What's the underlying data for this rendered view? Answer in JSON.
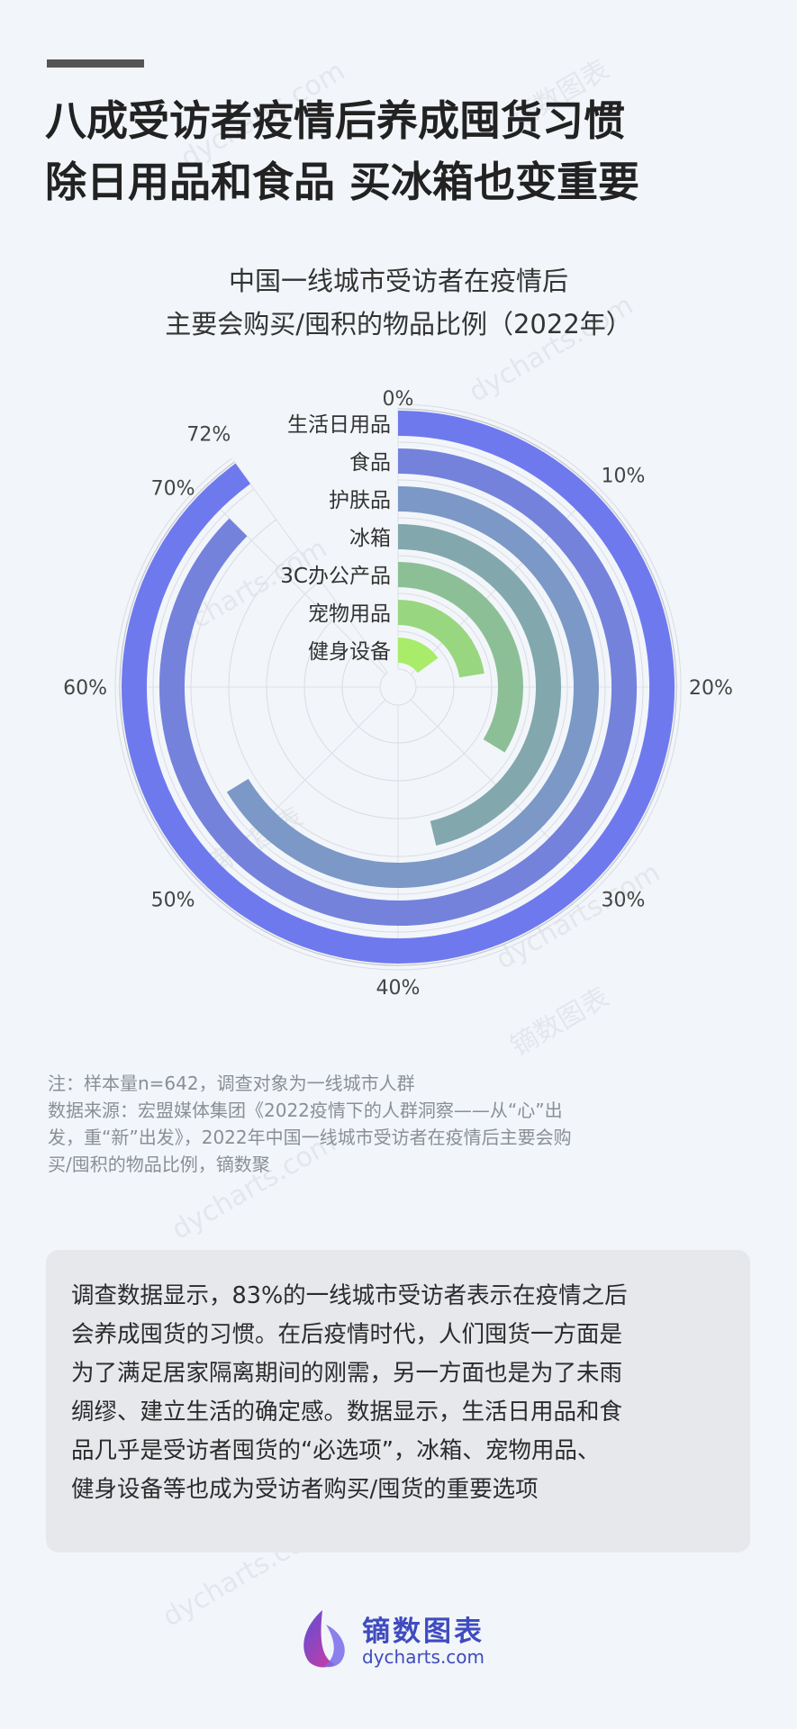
{
  "headline": {
    "line1": "八成受访者疫情后养成囤货习惯",
    "line2": "除日用品和食品  买冰箱也变重要"
  },
  "chart_data": {
    "type": "radial-bar",
    "title_line1": "中国一线城市受访者在疫情后",
    "title_line2": "主要会购买/囤积的物品比例（2022年）",
    "categories": [
      "生活日用品",
      "食品",
      "护肤品",
      "冰箱",
      "3C办公产品",
      "宠物用品",
      "健身设备"
    ],
    "values": [
      72,
      70,
      53,
      37,
      27,
      18,
      12
    ],
    "axis_range": [
      0,
      80
    ],
    "tick_values": [
      0,
      10,
      20,
      30,
      40,
      50,
      60,
      70,
      72
    ],
    "tick_labels": [
      "0%",
      "10%",
      "20%",
      "30%",
      "40%",
      "50%",
      "60%",
      "70%",
      "72%"
    ],
    "colors": [
      "#6f79ee",
      "#7482dc",
      "#7b98c6",
      "#82a8ae",
      "#8dbf97",
      "#99d680",
      "#a8ec6a"
    ],
    "grid": true
  },
  "notes": {
    "line1": "注：样本量n=642，调查对象为一线城市人群",
    "line2": "数据来源：宏盟媒体集团《2022疫情下的人群洞察——从“心”出",
    "line3": "发，重“新”出发》，2022年中国一线城市受访者在疫情后主要会购",
    "line4": "买/囤积的物品比例，镝数聚"
  },
  "summary": {
    "line1": "调查数据显示，83%的一线城市受访者表示在疫情之后",
    "line2": "会养成囤货的习惯。在后疫情时代，人们囤货一方面是",
    "line3": "为了满足居家隔离期间的刚需，另一方面也是为了未雨",
    "line4": "绸缪、建立生活的确定感。数据显示，生活日用品和食",
    "line5": "品几乎是受访者囤货的“必选项”，冰箱、宠物用品、",
    "line6": "健身设备等也成为受访者购买/囤货的重要选项"
  },
  "brand": {
    "name": "镝数图表",
    "url": "dycharts.com"
  },
  "watermark": {
    "url_text": "dycharts.com",
    "name_text": "镝数图表"
  }
}
